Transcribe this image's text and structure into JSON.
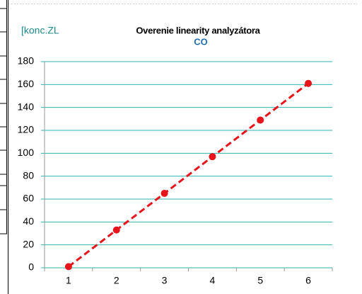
{
  "chart_data": {
    "type": "line",
    "title": "Overenie linearity analyzátora",
    "subtitle": "CO",
    "ylabel": "[konc.ZL",
    "categories": [
      "1",
      "2",
      "3",
      "4",
      "5",
      "6"
    ],
    "values": [
      1,
      33,
      65,
      97,
      129,
      161
    ],
    "color": "#e8141b",
    "ylim": [
      0,
      180
    ],
    "yticks": [
      0,
      20,
      40,
      60,
      80,
      100,
      120,
      140,
      160,
      180
    ],
    "grid": true,
    "grid_color": "#2fb3b3"
  }
}
